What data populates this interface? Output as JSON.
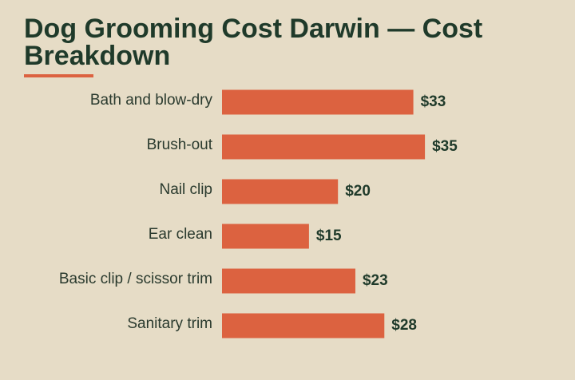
{
  "chart_data": {
    "type": "bar",
    "orientation": "horizontal",
    "title": "Dog Grooming Cost Darwin — Cost Breakdown",
    "categories": [
      "Bath and blow-dry",
      "Brush-out",
      "Nail clip",
      "Ear clean",
      "Basic clip / scissor trim",
      "Sanitary trim"
    ],
    "values": [
      33,
      35,
      20,
      15,
      23,
      28
    ],
    "value_labels": [
      "$33",
      "$35",
      "$20",
      "$15",
      "$23",
      "$28"
    ],
    "color": "#dc6240"
  }
}
